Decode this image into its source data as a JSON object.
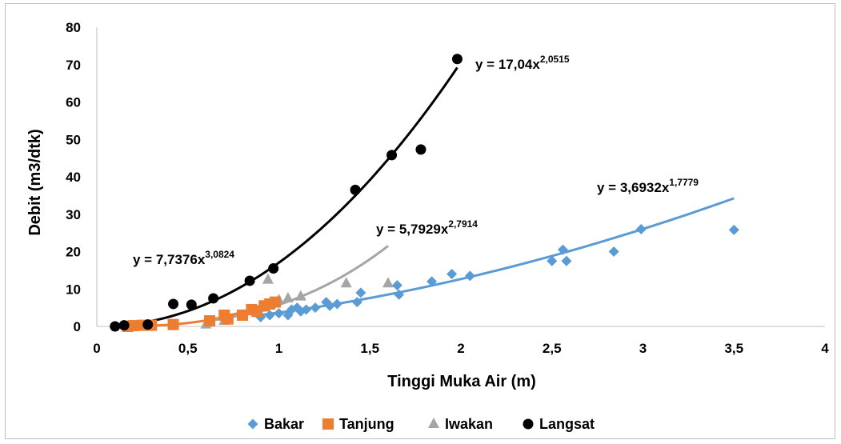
{
  "chart_data": {
    "type": "scatter",
    "title": "",
    "xlabel": "Tinggi Muka Air (m)",
    "ylabel": "Debit (m3/dtk)",
    "xlim": [
      0,
      4
    ],
    "ylim": [
      0,
      80
    ],
    "x_ticks": [
      0,
      0.5,
      1,
      1.5,
      2,
      2.5,
      3,
      3.5,
      4
    ],
    "x_tick_labels": [
      "0",
      "0,5",
      "1",
      "1,5",
      "2",
      "2,5",
      "3",
      "3,5",
      "4"
    ],
    "y_ticks": [
      0,
      10,
      20,
      30,
      40,
      50,
      60,
      70,
      80
    ],
    "y_tick_labels": [
      "0",
      "10",
      "20",
      "30",
      "40",
      "50",
      "60",
      "70",
      "80"
    ],
    "grid": false,
    "legend_position": "bottom",
    "series": [
      {
        "name": "Bakar",
        "color": "#5b9bd5",
        "marker": "diamond",
        "points": [
          [
            0.9,
            2.5
          ],
          [
            0.95,
            3
          ],
          [
            1.0,
            3.5
          ],
          [
            1.05,
            3
          ],
          [
            1.07,
            4.5
          ],
          [
            1.1,
            5
          ],
          [
            1.12,
            4
          ],
          [
            1.15,
            4.5
          ],
          [
            1.2,
            5
          ],
          [
            1.26,
            6.5
          ],
          [
            1.28,
            5.5
          ],
          [
            1.32,
            6
          ],
          [
            1.43,
            6.5
          ],
          [
            1.45,
            9
          ],
          [
            1.65,
            11
          ],
          [
            1.66,
            8.5
          ],
          [
            1.84,
            12
          ],
          [
            1.95,
            14
          ],
          [
            2.05,
            13.5
          ],
          [
            2.5,
            17.5
          ],
          [
            2.56,
            20.5
          ],
          [
            2.58,
            17.5
          ],
          [
            2.84,
            20
          ],
          [
            2.99,
            26
          ],
          [
            3.5,
            25.8
          ]
        ],
        "trend": {
          "a": 3.6932,
          "b": 1.7779,
          "x_range": [
            0.9,
            3.5
          ],
          "color": "#5b9bd5"
        },
        "equation": {
          "lead": "y = 3,6932x",
          "exp": "1,7779"
        }
      },
      {
        "name": "Tanjung",
        "color": "#ed7d31",
        "marker": "square",
        "points": [
          [
            0.17,
            0
          ],
          [
            0.2,
            0.2
          ],
          [
            0.25,
            0.3
          ],
          [
            0.3,
            0.3
          ],
          [
            0.42,
            0.5
          ],
          [
            0.62,
            1.5
          ],
          [
            0.7,
            3
          ],
          [
            0.72,
            2
          ],
          [
            0.8,
            3
          ],
          [
            0.85,
            4.5
          ],
          [
            0.88,
            4
          ],
          [
            0.92,
            5.5
          ],
          [
            0.95,
            6
          ],
          [
            0.98,
            6.5
          ]
        ],
        "trend": {
          "a": 7.7376,
          "b": 3.0824,
          "x_range": [
            0.15,
            1.0
          ],
          "color": "#ed7d31"
        },
        "equation": {
          "lead": "y = 7,7376x",
          "exp": "3,0824"
        }
      },
      {
        "name": "Iwakan",
        "color": "#a5a5a5",
        "marker": "triangle",
        "points": [
          [
            0.6,
            0.5
          ],
          [
            0.7,
            1.5
          ],
          [
            0.8,
            3
          ],
          [
            0.85,
            4
          ],
          [
            0.9,
            5
          ],
          [
            0.94,
            12.5
          ],
          [
            1.0,
            7
          ],
          [
            1.05,
            7.5
          ],
          [
            1.12,
            8
          ],
          [
            1.37,
            11.5
          ],
          [
            1.6,
            11.5
          ]
        ],
        "trend": {
          "a": 5.7929,
          "b": 2.7914,
          "x_range": [
            0.6,
            1.6
          ],
          "color": "#a5a5a5"
        },
        "equation": {
          "lead": "y = 5,7929x",
          "exp": "2,7914"
        }
      },
      {
        "name": "Langsat",
        "color": "#000000",
        "marker": "circle",
        "points": [
          [
            0.1,
            0
          ],
          [
            0.15,
            0.3
          ],
          [
            0.28,
            0.5
          ],
          [
            0.42,
            6
          ],
          [
            0.52,
            5.8
          ],
          [
            0.64,
            7.5
          ],
          [
            0.84,
            12.2
          ],
          [
            0.97,
            15.5
          ],
          [
            1.42,
            36.5
          ],
          [
            1.62,
            45.8
          ],
          [
            1.78,
            47.3
          ],
          [
            1.98,
            71.5
          ]
        ],
        "trend": {
          "a": 17.04,
          "b": 2.0515,
          "x_range": [
            0.1,
            1.98
          ],
          "color": "#000000"
        },
        "equation": {
          "lead": "y = 17,04x",
          "exp": "2,0515"
        }
      }
    ]
  }
}
